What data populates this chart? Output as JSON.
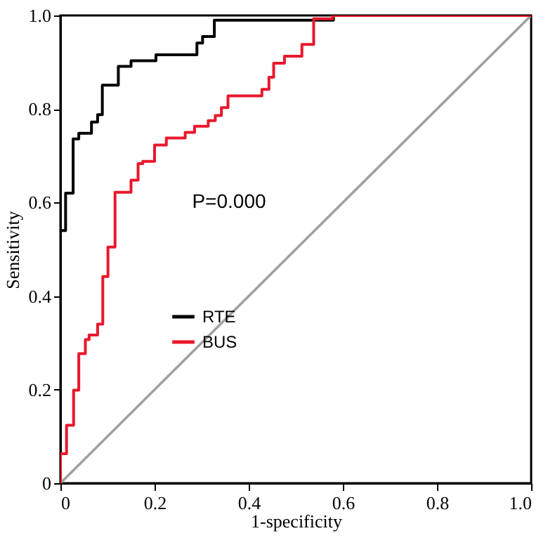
{
  "chart_data": {
    "type": "step",
    "xlabel": "1-specificity",
    "ylabel": "Sensitivity",
    "xlim": [
      0,
      1
    ],
    "ylim": [
      0,
      1
    ],
    "xticks": [
      0,
      0.2,
      0.4,
      0.6,
      0.8,
      {
        "value": 1,
        "label": "1.0"
      }
    ],
    "yticks": [
      0,
      0.2,
      0.4,
      0.6,
      0.8,
      {
        "value": 1,
        "label": "1.0"
      }
    ],
    "grid": false,
    "legend": "center",
    "marker": "none",
    "line_style": "solid",
    "annotations": [
      "P=0.000"
    ],
    "series": [
      {
        "type": "line",
        "color": "#a0a0a0",
        "x": [
          0,
          1
        ],
        "values": [
          0,
          1
        ]
      },
      {
        "name": "RTE",
        "color": "#000000",
        "x": [
          0,
          0,
          0.011,
          0.027,
          0.039,
          0.066,
          0.079,
          0.089,
          0.123,
          0.15,
          0.203,
          0.29,
          0.302,
          0.327,
          0.58,
          1
        ],
        "values": [
          0,
          0.54,
          0.62,
          0.736,
          0.748,
          0.772,
          0.788,
          0.851,
          0.891,
          0.903,
          0.916,
          0.941,
          0.955,
          0.99,
          1.0,
          1
        ]
      },
      {
        "name": "BUS",
        "color": "#e8182c",
        "x": [
          0,
          0,
          0.013,
          0.028,
          0.039,
          0.053,
          0.061,
          0.079,
          0.09,
          0.101,
          0.116,
          0.15,
          0.165,
          0.175,
          0.2,
          0.225,
          0.265,
          0.285,
          0.314,
          0.329,
          0.342,
          0.356,
          0.428,
          0.443,
          0.453,
          0.476,
          0.513,
          0.538,
          0.578,
          1
        ],
        "values": [
          0,
          0.063,
          0.124,
          0.199,
          0.277,
          0.307,
          0.317,
          0.34,
          0.442,
          0.505,
          0.622,
          0.648,
          0.683,
          0.688,
          0.723,
          0.738,
          0.75,
          0.763,
          0.775,
          0.786,
          0.803,
          0.828,
          0.842,
          0.868,
          0.898,
          0.913,
          0.938,
          0.993,
          1.0,
          1
        ]
      }
    ]
  }
}
